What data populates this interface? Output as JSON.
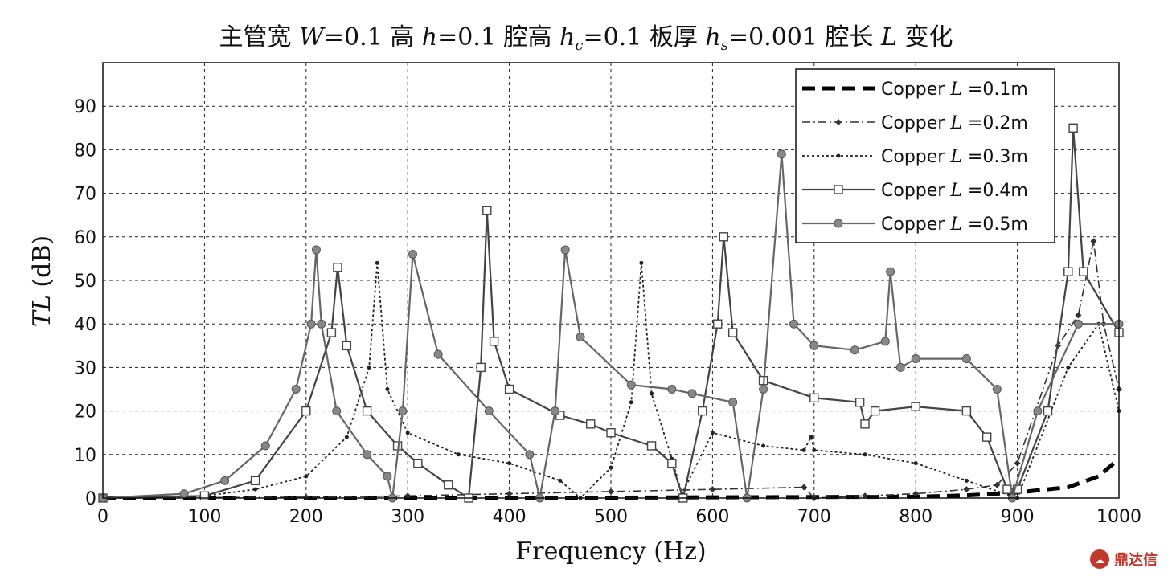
{
  "chart_data": {
    "type": "line",
    "title": "主管宽 W=0.1 高 h=0.1 腔高 hc=0.1 板厚 hs=0.001 腔长 L 变化",
    "title_parts": {
      "p1": "主管宽 ",
      "W": "W",
      "p2": "=0.1 高 ",
      "h": "h",
      "p3": "=0.1 腔高 ",
      "hc": "h",
      "hc_sub": "c",
      "p4": "=0.1 板厚 ",
      "hs": "h",
      "hs_sub": "s",
      "p5": "=0.001 腔长 ",
      "L": "L",
      "p6": " 变化"
    },
    "xlabel": "Frequency (Hz)",
    "ylabel": "TL (dB)",
    "ylabel_parts": {
      "italic": "TL",
      "rest": " (dB)"
    },
    "xlim": [
      0,
      1000
    ],
    "ylim": [
      0,
      100
    ],
    "xticks": [
      0,
      100,
      200,
      300,
      400,
      500,
      600,
      700,
      800,
      900,
      1000
    ],
    "yticks": [
      0,
      10,
      20,
      30,
      40,
      50,
      60,
      70,
      80,
      90
    ],
    "grid": true,
    "legend_position": "top-right",
    "series": [
      {
        "name": "Copper L =0.1m",
        "legend_prefix": "Copper ",
        "legend_var": "L",
        "legend_suffix": " =0.1m",
        "color": "#000000",
        "style": "dashed-thick",
        "marker": "none",
        "x": [
          0,
          500,
          800,
          850,
          900,
          950,
          980,
          1000
        ],
        "y": [
          0,
          0.1,
          0.3,
          0.6,
          1.3,
          2.5,
          5,
          9
        ]
      },
      {
        "name": "Copper L =0.2m",
        "legend_prefix": "Copper ",
        "legend_var": "L",
        "legend_suffix": " =0.2m",
        "color": "#333333",
        "style": "dashdot",
        "marker": "diamond",
        "x": [
          0,
          200,
          300,
          400,
          500,
          600,
          690,
          700,
          750,
          800,
          850,
          880,
          900,
          940,
          960,
          975,
          985,
          1000
        ],
        "y": [
          0,
          0.2,
          0.5,
          1,
          1.5,
          2,
          2.5,
          0,
          0.5,
          1,
          2,
          3,
          8,
          35,
          42,
          59,
          40,
          25
        ]
      },
      {
        "name": "Copper L =0.3m",
        "legend_prefix": "Copper ",
        "legend_var": "L",
        "legend_suffix": " =0.3m",
        "color": "#222222",
        "style": "dotted",
        "marker": "dot",
        "x": [
          0,
          100,
          150,
          200,
          240,
          262,
          270,
          280,
          300,
          350,
          400,
          450,
          470,
          500,
          520,
          530,
          540,
          560,
          570,
          600,
          650,
          690,
          697,
          700,
          750,
          800,
          850,
          900,
          950,
          980,
          1000
        ],
        "y": [
          0,
          0.5,
          2,
          5,
          14,
          30,
          54,
          25,
          15,
          10,
          8,
          4,
          0,
          7,
          22,
          54,
          24,
          9,
          1,
          15,
          12,
          11,
          14,
          11,
          10,
          8,
          4,
          0,
          30,
          40,
          20
        ]
      },
      {
        "name": "Copper L =0.4m",
        "legend_prefix": "Copper ",
        "legend_var": "L",
        "legend_suffix": " =0.4m",
        "color": "#444444",
        "style": "solid",
        "marker": "square",
        "x": [
          0,
          100,
          150,
          200,
          225,
          231,
          240,
          260,
          290,
          310,
          340,
          360,
          372,
          378,
          385,
          400,
          450,
          480,
          500,
          540,
          560,
          571,
          590,
          605,
          611,
          620,
          650,
          700,
          745,
          750,
          760,
          800,
          850,
          870,
          890,
          900,
          930,
          950,
          955,
          965,
          1000
        ],
        "y": [
          0,
          0.5,
          4,
          20,
          38,
          53,
          35,
          20,
          12,
          8,
          3,
          0,
          30,
          66,
          36,
          25,
          19,
          17,
          15,
          12,
          8,
          0,
          20,
          40,
          60,
          38,
          27,
          23,
          22,
          17,
          20,
          21,
          20,
          14,
          2,
          2,
          20,
          52,
          85,
          52,
          38
        ]
      },
      {
        "name": "Copper L =0.5m",
        "legend_prefix": "Copper ",
        "legend_var": "L",
        "legend_suffix": " =0.5m",
        "color": "#666666",
        "style": "solid",
        "marker": "circle",
        "x": [
          0,
          80,
          120,
          160,
          190,
          205,
          210,
          215,
          230,
          260,
          280,
          285,
          295,
          305,
          330,
          380,
          420,
          430,
          445,
          455,
          470,
          520,
          560,
          580,
          620,
          634,
          650,
          668,
          680,
          700,
          740,
          770,
          775,
          785,
          800,
          850,
          880,
          895,
          920,
          960,
          1000
        ],
        "y": [
          0,
          1,
          4,
          12,
          25,
          40,
          57,
          40,
          20,
          10,
          5,
          0,
          20,
          56,
          33,
          20,
          10,
          0,
          20,
          57,
          37,
          26,
          25,
          24,
          22,
          0,
          25,
          79,
          40,
          35,
          34,
          36,
          52,
          30,
          32,
          32,
          25,
          0,
          20,
          40,
          40
        ]
      }
    ]
  },
  "watermark": {
    "text": "鼎达信",
    "icon": "cloud-badge-icon"
  }
}
